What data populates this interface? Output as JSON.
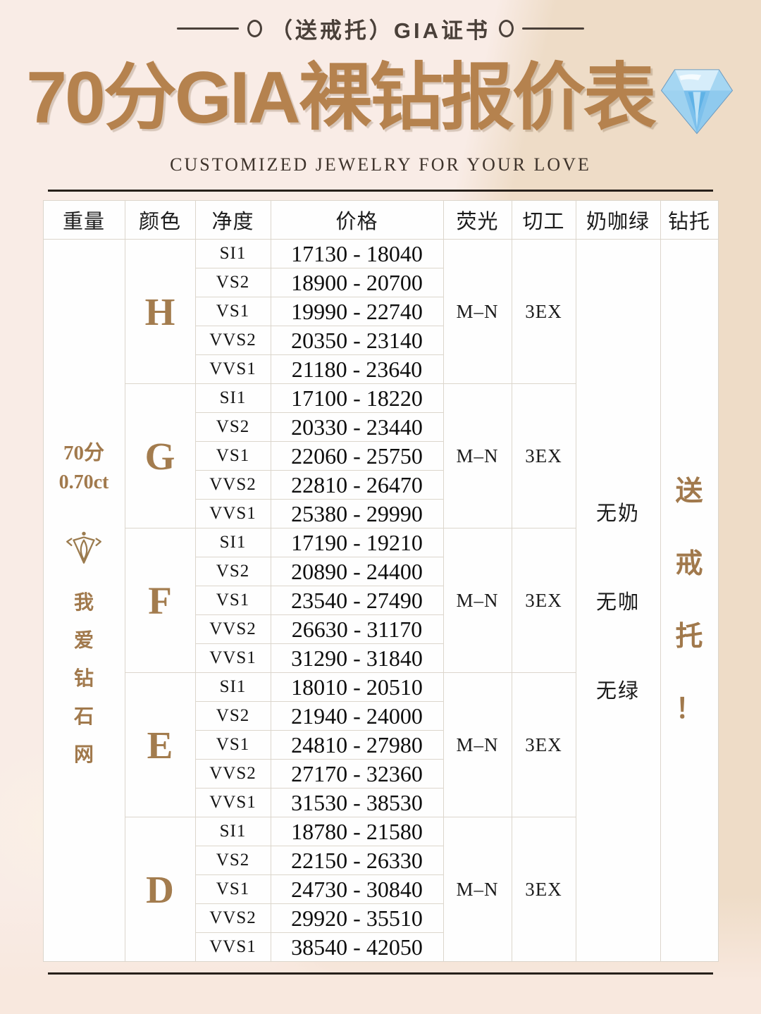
{
  "banner": {
    "label": "（送戒托）GIA证书"
  },
  "header": {
    "title": "70分GIA裸钻报价表",
    "subtitle": "CUSTOMIZED JEWELRY FOR YOUR LOVE",
    "diamond_icon": "blue-gem-icon"
  },
  "table": {
    "columns": [
      "重量",
      "颜色",
      "净度",
      "价格",
      "荧光",
      "切工",
      "奶咖绿",
      "钻托"
    ],
    "weight": {
      "primary": "70分",
      "secondary": "0.70ct",
      "brand_icon": "diamond-brand-icon",
      "brand_name": "我爱钻石网"
    },
    "milk_coffee_green": [
      "无奶",
      "无咖",
      "无绿"
    ],
    "ring_setting": "送戒托！",
    "groups": [
      {
        "color": "H",
        "fluorescence": "M–N",
        "cut": "3EX",
        "rows": [
          {
            "clarity": "SI1",
            "price": "17130 - 18040"
          },
          {
            "clarity": "VS2",
            "price": "18900 - 20700"
          },
          {
            "clarity": "VS1",
            "price": "19990 - 22740"
          },
          {
            "clarity": "VVS2",
            "price": "20350 - 23140"
          },
          {
            "clarity": "VVS1",
            "price": "21180 - 23640"
          }
        ]
      },
      {
        "color": "G",
        "fluorescence": "M–N",
        "cut": "3EX",
        "rows": [
          {
            "clarity": "SI1",
            "price": "17100 - 18220"
          },
          {
            "clarity": "VS2",
            "price": "20330 - 23440"
          },
          {
            "clarity": "VS1",
            "price": "22060 - 25750"
          },
          {
            "clarity": "VVS2",
            "price": "22810 - 26470"
          },
          {
            "clarity": "VVS1",
            "price": "25380 - 29990"
          }
        ]
      },
      {
        "color": "F",
        "fluorescence": "M–N",
        "cut": "3EX",
        "rows": [
          {
            "clarity": "SI1",
            "price": "17190 - 19210"
          },
          {
            "clarity": "VS2",
            "price": "20890 - 24400"
          },
          {
            "clarity": "VS1",
            "price": "23540 - 27490"
          },
          {
            "clarity": "VVS2",
            "price": "26630 - 31170"
          },
          {
            "clarity": "VVS1",
            "price": "31290 - 31840"
          }
        ]
      },
      {
        "color": "E",
        "fluorescence": "M–N",
        "cut": "3EX",
        "rows": [
          {
            "clarity": "SI1",
            "price": "18010 - 20510"
          },
          {
            "clarity": "VS2",
            "price": "21940 - 24000"
          },
          {
            "clarity": "VS1",
            "price": "24810 - 27980"
          },
          {
            "clarity": "VVS2",
            "price": "27170 - 32360"
          },
          {
            "clarity": "VVS1",
            "price": "31530 - 38530"
          }
        ]
      },
      {
        "color": "D",
        "fluorescence": "M–N",
        "cut": "3EX",
        "rows": [
          {
            "clarity": "SI1",
            "price": "18780 - 21580"
          },
          {
            "clarity": "VS2",
            "price": "22150 - 26330"
          },
          {
            "clarity": "VS1",
            "price": "24730 - 30840"
          },
          {
            "clarity": "VVS2",
            "price": "29920 - 35510"
          },
          {
            "clarity": "VVS1",
            "price": "38540 - 42050"
          }
        ]
      }
    ]
  },
  "colors": {
    "accent_gold": "#b5824e",
    "letter_gold": "#a37c4e",
    "text_dark": "#1b1b1b",
    "rule_dark": "#27201a",
    "bg_left": "#f9ece6",
    "bg_right": "#eedcc7",
    "cell_bg": "#fefefe",
    "cell_border": "#dcd6cc",
    "gem_blue": "#7cc0ec"
  }
}
